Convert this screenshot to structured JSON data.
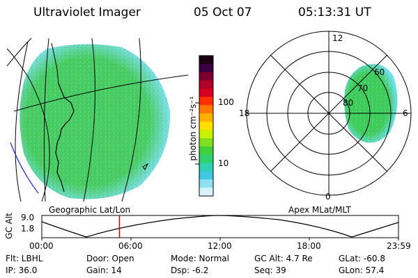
{
  "header": {
    "title": "Ultraviolet Imager",
    "date": "05 Oct 07",
    "time": "05:13:31 UT"
  },
  "colorbar": {
    "unit_label": "photon cm⁻²s⁻¹",
    "ticks": [
      "100",
      "10"
    ],
    "colors": [
      "#1a0010",
      "#3b0040",
      "#7a0030",
      "#b0002a",
      "#d8001f",
      "#ff3000",
      "#ff7800",
      "#ffb000",
      "#ffe000",
      "#c8f000",
      "#80e020",
      "#40d040",
      "#30d070",
      "#30d0b0",
      "#40c8e0",
      "#90e0f0",
      "#d8f4fa"
    ]
  },
  "left_panel": {
    "label": "Geographic Lat/Lon",
    "fill_color": "#48cc60",
    "edge_color": "#80e0f0"
  },
  "right_panel": {
    "label": "Apex MLat/MLT",
    "mlt_labels": {
      "top": "12",
      "left": "18",
      "right": "6",
      "bottom": "0"
    },
    "lat_labels": [
      "60",
      "70",
      "80"
    ],
    "fill_color": "#40cc58",
    "edge_color": "#70e0f0"
  },
  "timeline": {
    "axis_label": "GC Alt",
    "y_top": "9.0",
    "y_bottom": "1.8",
    "x_ticks": [
      "00:00",
      "06:00",
      "12:00",
      "18:00",
      "23:59"
    ],
    "marker_color": "#c00000",
    "marker_time_hours": 5.225
  },
  "info": {
    "flt": "Flt: LBHL",
    "ip": "IP: 36.0",
    "door": "Door: Open",
    "gain": "Gain: 14",
    "mode": "Mode: Normal",
    "dsp": "Dsp:   -6.2",
    "gc_alt": "GC Alt: 4.7 Re",
    "seq": "Seq: 39",
    "glat": "GLat: -60.8",
    "glon": "GLon:  57.4"
  }
}
